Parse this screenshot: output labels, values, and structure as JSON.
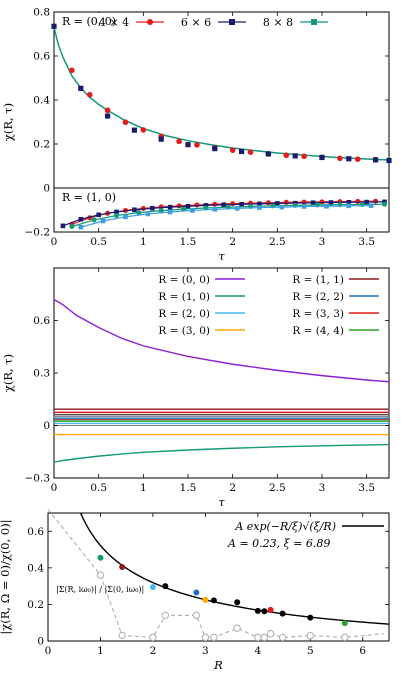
{
  "chart_data": [
    {
      "type": "line",
      "panel": "top",
      "xlabel": "τ",
      "ylabel": "χ(R, τ)",
      "xlim": [
        0,
        3.75
      ],
      "ylim": [
        -0.2,
        0.8
      ],
      "x_ticks": [
        0,
        0.5,
        1,
        1.5,
        2,
        2.5,
        3,
        3.5
      ],
      "x_tick_labels": [
        "0",
        "0.5",
        "1",
        "1.5",
        "2",
        "2.5",
        "3",
        "3.5"
      ],
      "y_ticks": [
        -0.2,
        0,
        0.2,
        0.4,
        0.6,
        0.8
      ],
      "y_tick_labels": [
        "−0.2",
        "0",
        "0.2",
        "0.4",
        "0.6",
        "0.8"
      ],
      "annotations": [
        "R = (0, 0)",
        "R = (1, 0)"
      ],
      "legend_position": "top-right",
      "series": [
        {
          "name": "4 × 4",
          "color": "#e41a1c",
          "marker": "circle",
          "x": [
            0.2,
            0.4,
            0.6,
            0.8,
            1.0,
            1.2,
            1.4,
            1.6,
            1.8,
            2.0,
            2.2,
            2.4,
            2.6,
            2.8,
            3.0,
            3.2,
            3.4,
            3.6
          ],
          "values": [
            0.535,
            0.424,
            0.353,
            0.299,
            0.264,
            0.234,
            0.212,
            0.196,
            0.183,
            0.172,
            0.163,
            0.155,
            0.149,
            0.144,
            0.139,
            0.135,
            0.131,
            0.128
          ]
        },
        {
          "name": "6 × 6",
          "color": "#1a1a6e",
          "marker": "square",
          "x": [
            0.0,
            0.3,
            0.6,
            0.9,
            1.2,
            1.5,
            1.8,
            2.1,
            2.4,
            2.7,
            3.0,
            3.3,
            3.6,
            3.75
          ],
          "values": [
            0.735,
            0.453,
            0.327,
            0.263,
            0.222,
            0.197,
            0.179,
            0.166,
            0.155,
            0.146,
            0.139,
            0.133,
            0.128,
            0.125
          ]
        },
        {
          "name": "8 × 8",
          "color": "#129978",
          "marker": "line",
          "x": [
            0.0,
            0.05,
            0.1,
            0.2,
            0.3,
            0.4,
            0.5,
            0.6,
            0.8,
            1.0,
            1.25,
            1.5,
            1.75,
            2.0,
            2.25,
            2.5,
            2.75,
            3.0,
            3.25,
            3.5,
            3.75
          ],
          "values": [
            0.73,
            0.65,
            0.595,
            0.51,
            0.455,
            0.412,
            0.38,
            0.353,
            0.306,
            0.27,
            0.238,
            0.215,
            0.197,
            0.182,
            0.17,
            0.159,
            0.151,
            0.143,
            0.137,
            0.132,
            0.127
          ]
        }
      ],
      "r10_series": [
        {
          "color": "#e41a1c",
          "x": [
            0.2,
            0.4,
            0.6,
            0.8,
            1.0,
            1.2,
            1.4,
            1.6,
            1.8,
            2.0,
            2.2,
            2.4,
            2.6,
            2.8,
            3.0,
            3.2,
            3.4,
            3.6
          ],
          "values": [
            -0.165,
            -0.135,
            -0.115,
            -0.102,
            -0.093,
            -0.086,
            -0.081,
            -0.077,
            -0.074,
            -0.071,
            -0.069,
            -0.067,
            -0.065,
            -0.064,
            -0.063,
            -0.062,
            -0.061,
            -0.06
          ]
        },
        {
          "color": "#1a1a6e",
          "x": [
            0.1,
            0.3,
            0.5,
            0.7,
            0.9,
            1.1,
            1.3,
            1.5,
            1.7,
            1.9,
            2.1,
            2.3,
            2.5,
            2.7,
            2.9,
            3.1,
            3.3,
            3.5,
            3.7
          ],
          "values": [
            -0.172,
            -0.142,
            -0.122,
            -0.109,
            -0.099,
            -0.092,
            -0.087,
            -0.083,
            -0.079,
            -0.076,
            -0.074,
            -0.072,
            -0.07,
            -0.069,
            -0.067,
            -0.066,
            -0.065,
            -0.064,
            -0.063
          ]
        },
        {
          "color": "#129978",
          "x": [
            0.2,
            0.45,
            0.7,
            0.95,
            1.2,
            1.45,
            1.7,
            1.95,
            2.2,
            2.45,
            2.7,
            2.95,
            3.2,
            3.45,
            3.7
          ],
          "values": [
            -0.175,
            -0.145,
            -0.125,
            -0.112,
            -0.103,
            -0.096,
            -0.091,
            -0.087,
            -0.084,
            -0.081,
            -0.079,
            -0.077,
            -0.076,
            -0.075,
            -0.074
          ]
        },
        {
          "color": "#3aa0e0",
          "x": [
            0.3,
            0.55,
            0.8,
            1.05,
            1.3,
            1.55,
            1.8,
            2.05,
            2.3,
            2.55,
            2.8,
            3.05,
            3.3,
            3.55
          ],
          "values": [
            -0.178,
            -0.15,
            -0.131,
            -0.118,
            -0.109,
            -0.102,
            -0.097,
            -0.093,
            -0.089,
            -0.087,
            -0.084,
            -0.083,
            -0.081,
            -0.08
          ]
        }
      ]
    },
    {
      "type": "line",
      "panel": "middle",
      "xlabel": "τ",
      "ylabel": "χ(R, τ)",
      "xlim": [
        0,
        3.75
      ],
      "ylim": [
        -0.3,
        0.9
      ],
      "x_ticks": [
        0,
        0.5,
        1,
        1.5,
        2,
        2.5,
        3,
        3.5
      ],
      "x_tick_labels": [
        "0",
        "0.5",
        "1",
        "1.5",
        "2",
        "2.5",
        "3",
        "3.5"
      ],
      "y_ticks": [
        -0.3,
        0,
        0.3,
        0.6
      ],
      "y_tick_labels": [
        "−0.3",
        "0",
        "0.3",
        "0.6"
      ],
      "legend_position": "top-right",
      "series": [
        {
          "name": "R = (0, 0)",
          "color": "#8b1fd6",
          "x": [
            0,
            0.1,
            0.25,
            0.5,
            0.75,
            1,
            1.5,
            2,
            2.5,
            3,
            3.5,
            3.75
          ],
          "values": [
            0.72,
            0.69,
            0.63,
            0.56,
            0.5,
            0.455,
            0.395,
            0.35,
            0.315,
            0.285,
            0.26,
            0.25
          ]
        },
        {
          "name": "R = (1, 0)",
          "color": "#129978",
          "x": [
            0,
            0.1,
            0.25,
            0.5,
            0.75,
            1,
            1.5,
            2,
            2.5,
            3,
            3.5,
            3.75
          ],
          "values": [
            -0.21,
            -0.2,
            -0.19,
            -0.175,
            -0.163,
            -0.153,
            -0.14,
            -0.13,
            -0.122,
            -0.116,
            -0.111,
            -0.109
          ]
        },
        {
          "name": "R = (2, 0)",
          "color": "#47b6ef",
          "x": [
            0,
            3.75
          ],
          "values": [
            0.012,
            0.012
          ]
        },
        {
          "name": "R = (3, 0)",
          "color": "#ffa500",
          "x": [
            0,
            3.75
          ],
          "values": [
            -0.052,
            -0.052
          ]
        },
        {
          "name": "R = (1, 1)",
          "color": "#8b1a1a",
          "x": [
            0,
            3.75
          ],
          "values": [
            0.093,
            0.093
          ]
        },
        {
          "name": "R = (2, 2)",
          "color": "#1e6fbd",
          "x": [
            0,
            3.75
          ],
          "values": [
            0.042,
            0.042
          ]
        },
        {
          "name": "R = (3, 3)",
          "color": "#e41a1c",
          "x": [
            0,
            3.75
          ],
          "values": [
            0.075,
            0.075
          ]
        },
        {
          "name": "R = (4, 4)",
          "color": "#2ca02c",
          "x": [
            0,
            3.75
          ],
          "values": [
            0.025,
            0.025
          ]
        }
      ],
      "extra_lines": [
        {
          "color": "#555555",
          "values": [
            0.062,
            0.062
          ]
        },
        {
          "color": "#888888",
          "values": [
            0.052,
            0.052
          ]
        },
        {
          "color": "#b04040",
          "values": [
            0.034,
            0.034
          ]
        }
      ]
    },
    {
      "type": "scatter",
      "panel": "bottom",
      "xlabel": "R",
      "ylabel": "|χ(R, Ω = 0)/χ(0, 0)|",
      "xlim": [
        0,
        6.5
      ],
      "ylim": [
        0,
        0.7
      ],
      "x_ticks": [
        0,
        1,
        2,
        3,
        4,
        5,
        6
      ],
      "x_tick_labels": [
        "0",
        "1",
        "2",
        "3",
        "4",
        "5",
        "6"
      ],
      "y_ticks": [
        0,
        0.2,
        0.4,
        0.6
      ],
      "y_tick_labels": [
        "0",
        "0.2",
        "0.4",
        "0.6"
      ],
      "legend_position": "top-right",
      "fit": {
        "label": "A exp(−R/ξ)√(ξ/R)",
        "params": "A = 0.23,    ξ = 6.89",
        "A": 0.23,
        "xi": 6.89,
        "color": "#000000"
      },
      "sigma_label": "|Σ(R, iω₀)| / |Σ(0, iω₀)|",
      "points": [
        {
          "x": 1.0,
          "y": 0.455,
          "color": "#129978"
        },
        {
          "x": 1.414,
          "y": 0.405,
          "color": "#8b1a1a"
        },
        {
          "x": 2.0,
          "y": 0.295,
          "color": "#47b6ef"
        },
        {
          "x": 2.236,
          "y": 0.3,
          "color": "#000000"
        },
        {
          "x": 2.828,
          "y": 0.265,
          "color": "#1e6fbd"
        },
        {
          "x": 3.0,
          "y": 0.225,
          "color": "#ffa500"
        },
        {
          "x": 3.162,
          "y": 0.222,
          "color": "#000000"
        },
        {
          "x": 3.606,
          "y": 0.212,
          "color": "#000000"
        },
        {
          "x": 4.0,
          "y": 0.165,
          "color": "#000000"
        },
        {
          "x": 4.123,
          "y": 0.163,
          "color": "#000000"
        },
        {
          "x": 4.243,
          "y": 0.17,
          "color": "#e41a1c"
        },
        {
          "x": 4.472,
          "y": 0.15,
          "color": "#000000"
        },
        {
          "x": 5.0,
          "y": 0.128,
          "color": "#000000"
        },
        {
          "x": 5.657,
          "y": 0.098,
          "color": "#2ca02c"
        }
      ],
      "sigma_series": {
        "color": "#b3b3b3",
        "x": [
          0,
          1.0,
          1.414,
          2.0,
          2.236,
          2.828,
          3.0,
          3.162,
          3.606,
          4.0,
          4.123,
          4.243,
          4.472,
          5.0,
          5.657,
          6.4
        ],
        "values": [
          0.72,
          0.36,
          0.03,
          0.02,
          0.14,
          0.14,
          0.02,
          0.02,
          0.07,
          0.02,
          0.02,
          0.04,
          0.02,
          0.03,
          0.02,
          0.04
        ]
      }
    }
  ]
}
